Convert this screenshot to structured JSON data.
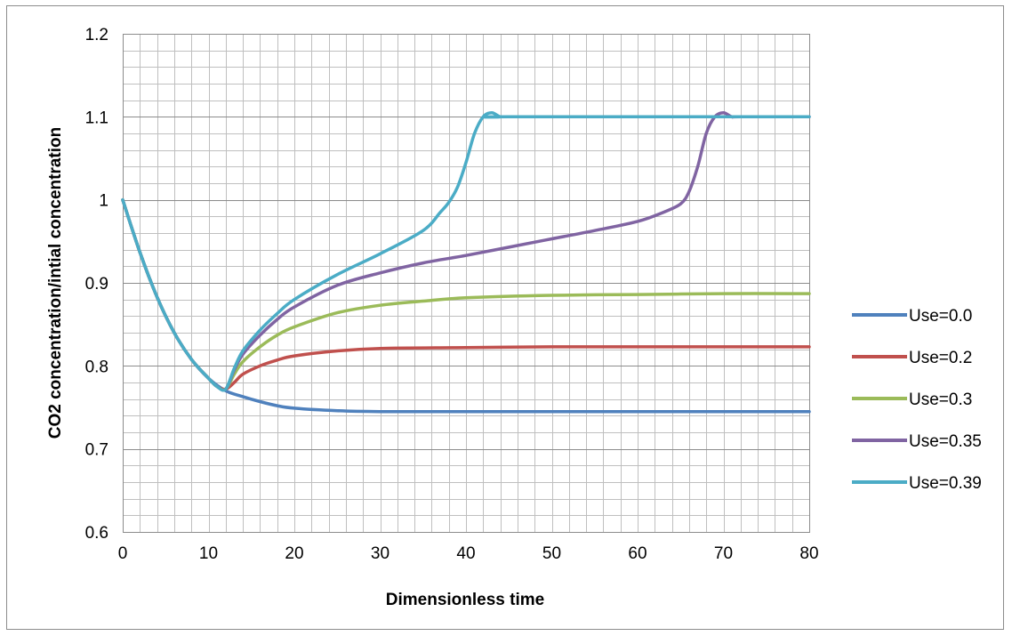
{
  "chart_data": {
    "type": "line",
    "title": "",
    "xlabel": "Dimensionless time",
    "ylabel": "CO2 concentration/intial concentration",
    "xlim": [
      0,
      80
    ],
    "ylim": [
      0.6,
      1.2
    ],
    "x_ticks": [
      "0",
      "10",
      "20",
      "30",
      "40",
      "50",
      "60",
      "70",
      "80"
    ],
    "y_ticks": [
      "0.6",
      "0.7",
      "0.8",
      "0.9",
      "1",
      "1.1",
      "1.2"
    ],
    "x_tick_values": [
      0,
      10,
      20,
      30,
      40,
      50,
      60,
      70,
      80
    ],
    "y_tick_values": [
      0.6,
      0.7,
      0.8,
      0.9,
      1.0,
      1.1,
      1.2
    ],
    "x_minor_step": 2,
    "y_minor_step": 0.02,
    "grid": true,
    "legend_position": "right",
    "series": [
      {
        "name": "Use=0.0",
        "color": "#4f81bd",
        "points": [
          [
            0,
            1.0
          ],
          [
            2,
            0.937
          ],
          [
            4,
            0.883
          ],
          [
            6,
            0.84
          ],
          [
            8,
            0.808
          ],
          [
            10,
            0.785
          ],
          [
            12,
            0.77
          ],
          [
            14,
            0.763
          ],
          [
            16,
            0.757
          ],
          [
            18,
            0.752
          ],
          [
            20,
            0.749
          ],
          [
            25,
            0.746
          ],
          [
            30,
            0.745
          ],
          [
            40,
            0.745
          ],
          [
            50,
            0.745
          ],
          [
            60,
            0.745
          ],
          [
            70,
            0.745
          ],
          [
            80,
            0.745
          ]
        ]
      },
      {
        "name": "Use=0.2",
        "color": "#c0504d",
        "points": [
          [
            0,
            1.0
          ],
          [
            2,
            0.937
          ],
          [
            4,
            0.883
          ],
          [
            6,
            0.84
          ],
          [
            8,
            0.808
          ],
          [
            10,
            0.785
          ],
          [
            11,
            0.775
          ],
          [
            12,
            0.772
          ],
          [
            13,
            0.78
          ],
          [
            14,
            0.79
          ],
          [
            16,
            0.8
          ],
          [
            18,
            0.807
          ],
          [
            20,
            0.812
          ],
          [
            25,
            0.818
          ],
          [
            30,
            0.821
          ],
          [
            40,
            0.822
          ],
          [
            50,
            0.823
          ],
          [
            60,
            0.823
          ],
          [
            70,
            0.823
          ],
          [
            80,
            0.823
          ]
        ]
      },
      {
        "name": "Use=0.3",
        "color": "#9bbb59",
        "points": [
          [
            0,
            1.0
          ],
          [
            2,
            0.937
          ],
          [
            4,
            0.883
          ],
          [
            6,
            0.84
          ],
          [
            8,
            0.808
          ],
          [
            10,
            0.785
          ],
          [
            11,
            0.775
          ],
          [
            12,
            0.772
          ],
          [
            13,
            0.79
          ],
          [
            14,
            0.805
          ],
          [
            16,
            0.823
          ],
          [
            18,
            0.837
          ],
          [
            20,
            0.847
          ],
          [
            25,
            0.864
          ],
          [
            30,
            0.873
          ],
          [
            35,
            0.878
          ],
          [
            40,
            0.882
          ],
          [
            50,
            0.885
          ],
          [
            60,
            0.886
          ],
          [
            70,
            0.887
          ],
          [
            80,
            0.887
          ]
        ]
      },
      {
        "name": "Use=0.35",
        "color": "#8064a2",
        "points": [
          [
            0,
            1.0
          ],
          [
            2,
            0.937
          ],
          [
            4,
            0.883
          ],
          [
            6,
            0.84
          ],
          [
            8,
            0.808
          ],
          [
            10,
            0.785
          ],
          [
            11,
            0.775
          ],
          [
            12,
            0.772
          ],
          [
            13,
            0.795
          ],
          [
            14,
            0.814
          ],
          [
            16,
            0.837
          ],
          [
            18,
            0.856
          ],
          [
            20,
            0.871
          ],
          [
            25,
            0.897
          ],
          [
            30,
            0.912
          ],
          [
            35,
            0.924
          ],
          [
            40,
            0.933
          ],
          [
            45,
            0.943
          ],
          [
            50,
            0.953
          ],
          [
            55,
            0.963
          ],
          [
            60,
            0.974
          ],
          [
            63,
            0.985
          ],
          [
            65,
            0.995
          ],
          [
            66,
            1.01
          ],
          [
            67,
            1.04
          ],
          [
            68,
            1.08
          ],
          [
            69,
            1.1
          ],
          [
            70,
            1.105
          ],
          [
            71,
            1.1
          ],
          [
            72,
            1.1
          ],
          [
            80,
            1.1
          ]
        ]
      },
      {
        "name": "Use=0.39",
        "color": "#4bacc6",
        "points": [
          [
            0,
            1.0
          ],
          [
            2,
            0.937
          ],
          [
            4,
            0.883
          ],
          [
            6,
            0.84
          ],
          [
            8,
            0.808
          ],
          [
            10,
            0.785
          ],
          [
            11,
            0.775
          ],
          [
            12,
            0.772
          ],
          [
            13,
            0.797
          ],
          [
            14,
            0.818
          ],
          [
            16,
            0.843
          ],
          [
            18,
            0.863
          ],
          [
            20,
            0.88
          ],
          [
            25,
            0.91
          ],
          [
            30,
            0.935
          ],
          [
            35,
            0.963
          ],
          [
            37,
            0.985
          ],
          [
            38,
            0.997
          ],
          [
            39,
            1.015
          ],
          [
            40,
            1.045
          ],
          [
            41,
            1.08
          ],
          [
            42,
            1.1
          ],
          [
            43,
            1.105
          ],
          [
            44,
            1.1
          ],
          [
            45,
            1.1
          ],
          [
            80,
            1.1
          ]
        ]
      }
    ]
  }
}
